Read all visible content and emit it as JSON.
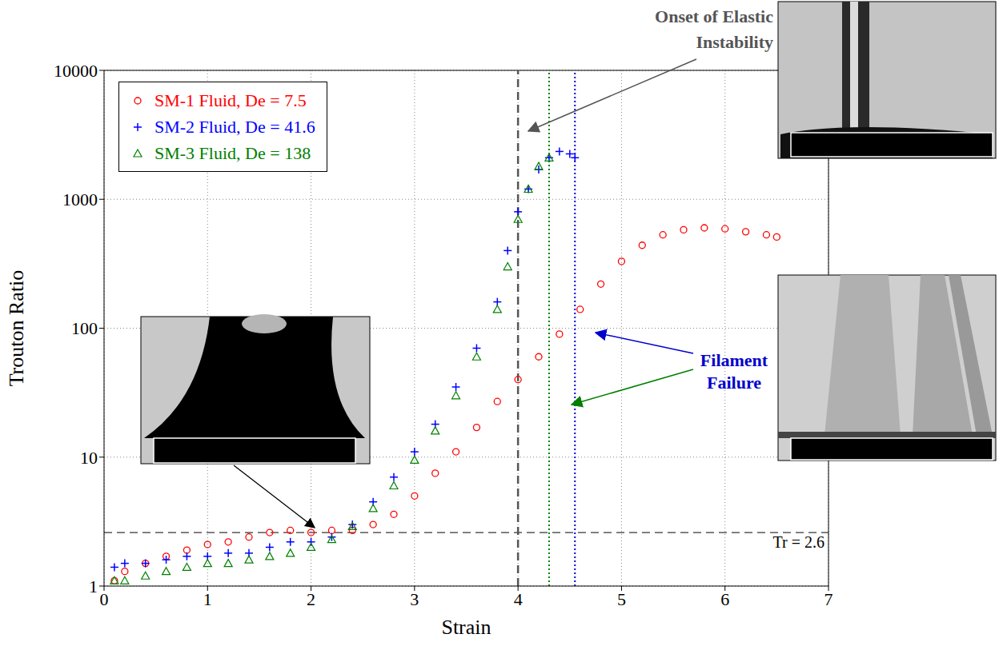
{
  "chart_data": {
    "type": "scatter",
    "x_label": "Strain",
    "y_label": "Trouton Ratio",
    "log": "y",
    "grid": true,
    "legend": "top-left",
    "xlim": [
      0,
      7
    ],
    "xticks": [
      0,
      1,
      2,
      3,
      4,
      5,
      6,
      7
    ],
    "ylim": [
      1,
      10000
    ],
    "yticks": [
      1,
      10,
      100,
      1000,
      10000
    ],
    "series": [
      {
        "name": "SM-1 Fluid, De = 7.5",
        "color": "#ff0000",
        "marker": "circle",
        "x": [
          0.1,
          0.2,
          0.4,
          0.6,
          0.8,
          1.0,
          1.2,
          1.4,
          1.6,
          1.8,
          2.0,
          2.2,
          2.4,
          2.6,
          2.8,
          3.0,
          3.2,
          3.4,
          3.6,
          3.8,
          4.0,
          4.2,
          4.4,
          4.6,
          4.8,
          5.0,
          5.2,
          5.4,
          5.6,
          5.8,
          6.0,
          6.2,
          6.4,
          6.5
        ],
        "values": [
          1.1,
          1.3,
          1.5,
          1.7,
          1.9,
          2.1,
          2.2,
          2.4,
          2.6,
          2.7,
          2.6,
          2.7,
          2.7,
          3.0,
          3.6,
          5,
          7.5,
          11,
          17,
          27,
          40,
          60,
          90,
          140,
          220,
          330,
          440,
          530,
          580,
          600,
          590,
          560,
          530,
          510
        ]
      },
      {
        "name": "SM-2 Fluid, De = 41.6",
        "color": "#0000ff",
        "marker": "plus",
        "x": [
          0.1,
          0.2,
          0.4,
          0.6,
          0.8,
          1.0,
          1.2,
          1.4,
          1.6,
          1.8,
          2.0,
          2.2,
          2.4,
          2.6,
          2.8,
          3.0,
          3.2,
          3.4,
          3.6,
          3.8,
          3.9,
          4.0,
          4.1,
          4.2,
          4.3,
          4.4,
          4.5,
          4.55
        ],
        "values": [
          1.4,
          1.5,
          1.5,
          1.6,
          1.7,
          1.7,
          1.8,
          1.8,
          2.0,
          2.2,
          2.2,
          2.4,
          3.0,
          4.5,
          7,
          11,
          18,
          35,
          70,
          160,
          400,
          800,
          1200,
          1700,
          2100,
          2350,
          2250,
          2100
        ]
      },
      {
        "name": "SM-3 Fluid, De = 138",
        "color": "#008000",
        "marker": "triangle",
        "x": [
          0.1,
          0.2,
          0.4,
          0.6,
          0.8,
          1.0,
          1.2,
          1.4,
          1.6,
          1.8,
          2.0,
          2.2,
          2.4,
          2.6,
          2.8,
          3.0,
          3.2,
          3.4,
          3.6,
          3.8,
          3.9,
          4.0,
          4.1,
          4.2,
          4.3
        ],
        "values": [
          1.1,
          1.1,
          1.2,
          1.3,
          1.4,
          1.5,
          1.5,
          1.6,
          1.7,
          1.8,
          2.0,
          2.3,
          2.9,
          4,
          6,
          9.5,
          16,
          30,
          60,
          140,
          300,
          700,
          1200,
          1800,
          2100
        ]
      }
    ],
    "vlines": [
      {
        "x": 4,
        "color": "#555555",
        "line_style": "dashed"
      },
      {
        "x": 4.3,
        "color": "#008000",
        "line_style": "dotted"
      },
      {
        "x": 4.55,
        "color": "#0000cc",
        "line_style": "dotted"
      }
    ],
    "hlines": [
      {
        "y": 2.6,
        "label": "Tr = 2.6",
        "color": "#000000",
        "line_style": "dashed"
      }
    ],
    "annotations": [
      {
        "text": "Onset of Elastic Instability",
        "color": "#555555"
      },
      {
        "text": "Filament Failure",
        "color": "#0000cc"
      }
    ]
  }
}
